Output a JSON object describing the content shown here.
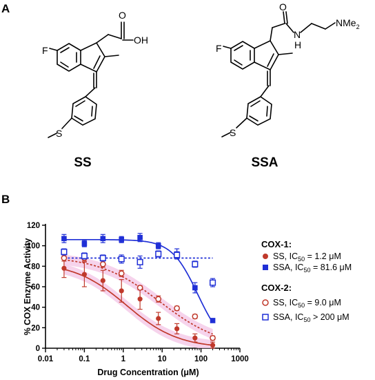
{
  "panels": {
    "a": "A",
    "b": "B"
  },
  "molecules": {
    "ss": {
      "name": "SS",
      "atoms": {
        "fluorine": "F",
        "carbonyl_o": "O",
        "hydroxyl": "OH",
        "sulfur": "S"
      }
    },
    "ssa": {
      "name": "SSA",
      "atoms": {
        "fluorine": "F",
        "carbonyl_o": "O",
        "amide_n": "N",
        "amide_h": "H",
        "amine": "NMe",
        "amine_sub": "2",
        "sulfur": "S"
      }
    }
  },
  "colors": {
    "ss": "#c0392b",
    "ss_band": "#f3c4e6",
    "ssa": "#1f2fd6",
    "axis": "#000000"
  },
  "legend": {
    "cox1_heading": "COX-1:",
    "cox2_heading": "COX-2:",
    "items": [
      {
        "prefix": "SS, IC",
        "sub": "50",
        "suffix": " = 1.2 μM"
      },
      {
        "prefix": "SSA, IC",
        "sub": "50",
        "suffix": " = 81.6 μM"
      },
      {
        "prefix": "SS, IC",
        "sub": "50",
        "suffix": " = 9.0 μM"
      },
      {
        "prefix": "SSA, IC",
        "sub": "50",
        "suffix": " > 200 μM"
      }
    ]
  },
  "chart_data": {
    "type": "scatter",
    "xlabel": "Drug Concentration (μM)",
    "ylabel": "% COX Enzyme Activity",
    "xscale": "log",
    "xlim": [
      0.01,
      1000
    ],
    "ylim": [
      0,
      120
    ],
    "xticks": [
      0.01,
      0.1,
      1,
      10,
      100,
      1000
    ],
    "xtick_labels": [
      "0.01",
      "0.1",
      "1",
      "10",
      "100",
      "1000"
    ],
    "yticks": [
      0,
      20,
      40,
      60,
      80,
      100,
      120
    ],
    "ytick_labels": [
      "0",
      "20",
      "40",
      "60",
      "80",
      "100",
      "120"
    ],
    "grid": false,
    "legend_position": "right",
    "series": [
      {
        "enzyme": "COX-1",
        "drug": "SS",
        "marker": "filled-circle",
        "fit": "solid",
        "x": [
          0.03,
          0.1,
          0.3,
          0.9,
          2.7,
          8,
          24,
          70,
          200
        ],
        "y": [
          78,
          72,
          66,
          56,
          48,
          29,
          19,
          10,
          3
        ],
        "err": [
          9,
          12,
          10,
          11,
          10,
          6,
          5,
          4,
          3
        ],
        "fit_ic50": 1.2,
        "fit_top": 84,
        "fit_bottom": 0,
        "fit_hill": 0.65
      },
      {
        "enzyme": "COX-1",
        "drug": "SSA",
        "marker": "filled-square",
        "fit": "solid",
        "x": [
          0.03,
          0.1,
          0.3,
          0.9,
          2.7,
          8,
          24,
          70,
          200
        ],
        "y": [
          107,
          102,
          107,
          106,
          108,
          100,
          92,
          59,
          27
        ],
        "err": [
          4,
          3,
          4,
          3,
          4,
          3,
          5,
          5,
          2
        ],
        "fit_ic50": 81.6,
        "fit_top": 106,
        "fit_bottom": 0,
        "fit_hill": 1.3
      },
      {
        "enzyme": "COX-2",
        "drug": "SS",
        "marker": "open-circle",
        "fit": "dotted",
        "x": [
          0.03,
          0.1,
          0.3,
          0.9,
          2.7,
          8,
          24,
          70,
          200
        ],
        "y": [
          88,
          88,
          82,
          73,
          59,
          48,
          39,
          31,
          10
        ],
        "err": [
          3,
          3,
          3,
          3,
          2,
          3,
          2,
          2,
          2
        ],
        "fit_ic50": 9.0,
        "fit_top": 90,
        "fit_bottom": 0,
        "fit_hill": 0.55
      },
      {
        "enzyme": "COX-2",
        "drug": "SSA",
        "marker": "open-square",
        "fit": "dotted",
        "x": [
          0.03,
          0.1,
          0.3,
          0.9,
          2.7,
          8,
          24,
          70,
          200
        ],
        "y": [
          94,
          90,
          88,
          87,
          84,
          92,
          91,
          82,
          64
        ],
        "err": [
          3,
          3,
          3,
          4,
          6,
          3,
          3,
          3,
          4
        ],
        "fit_flat": 88
      }
    ]
  }
}
